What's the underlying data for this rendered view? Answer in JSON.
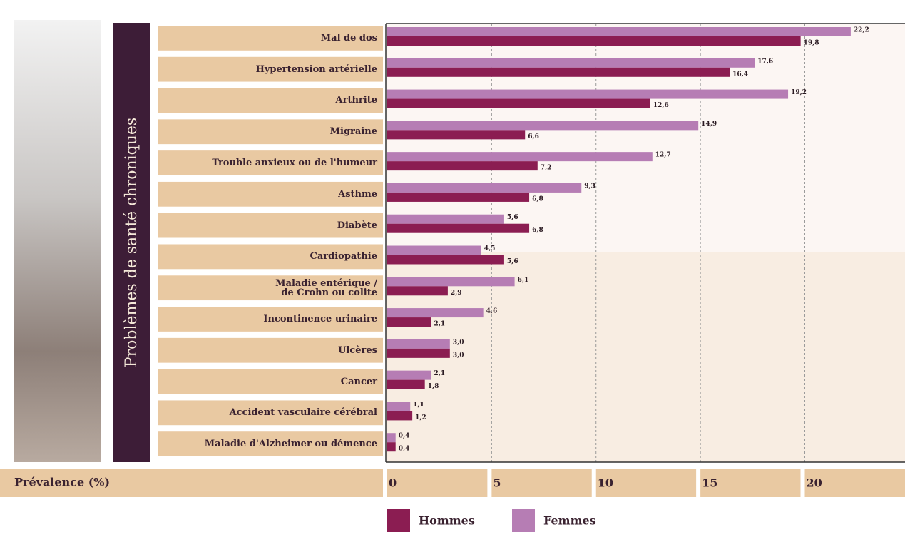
{
  "chart_data": {
    "type": "bar",
    "orientation": "horizontal",
    "y_label": "Problèmes de santé chroniques",
    "x_label": "Prévalence (%)",
    "categories": [
      "Mal de dos",
      "Hypertension artérielle",
      "Arthrite",
      "Migraine",
      "Trouble anxieux ou de l'humeur",
      "Asthme",
      "Diabète",
      "Cardiopathie",
      "Maladie entérique /\nde Crohn ou colite",
      "Incontinence urinaire",
      "Ulcères",
      "Cancer",
      "Accident vasculaire cérébral",
      "Maladie d'Alzheimer ou démence"
    ],
    "series": [
      {
        "name": "Hommes",
        "color": "#8b1d52",
        "values": [
          19.8,
          16.4,
          12.6,
          6.6,
          7.2,
          6.8,
          6.8,
          5.6,
          2.9,
          2.1,
          3.0,
          1.8,
          1.2,
          0.4
        ],
        "value_labels": [
          "19,8",
          "16,4",
          "12,6",
          "6,6",
          "7,2",
          "6,8",
          "6,8",
          "5,6",
          "2,9",
          "2,1",
          "3,0",
          "1,8",
          "1,2",
          "0,4"
        ]
      },
      {
        "name": "Femmes",
        "color": "#b67db4",
        "values": [
          22.2,
          17.6,
          19.2,
          14.9,
          12.7,
          9.3,
          5.6,
          4.5,
          6.1,
          4.6,
          3.0,
          2.1,
          1.1,
          0.4
        ],
        "value_labels": [
          "22,2",
          "17,6",
          "19,2",
          "14,9",
          "12,7",
          "9,3",
          "5,6",
          "4,5",
          "6,1",
          "4,6",
          "3,0",
          "2,1",
          "1,1",
          "0,4"
        ]
      }
    ],
    "xlim": [
      0,
      24.8
    ],
    "xticks": [
      0,
      5,
      10,
      15,
      20
    ],
    "grid": true
  }
}
